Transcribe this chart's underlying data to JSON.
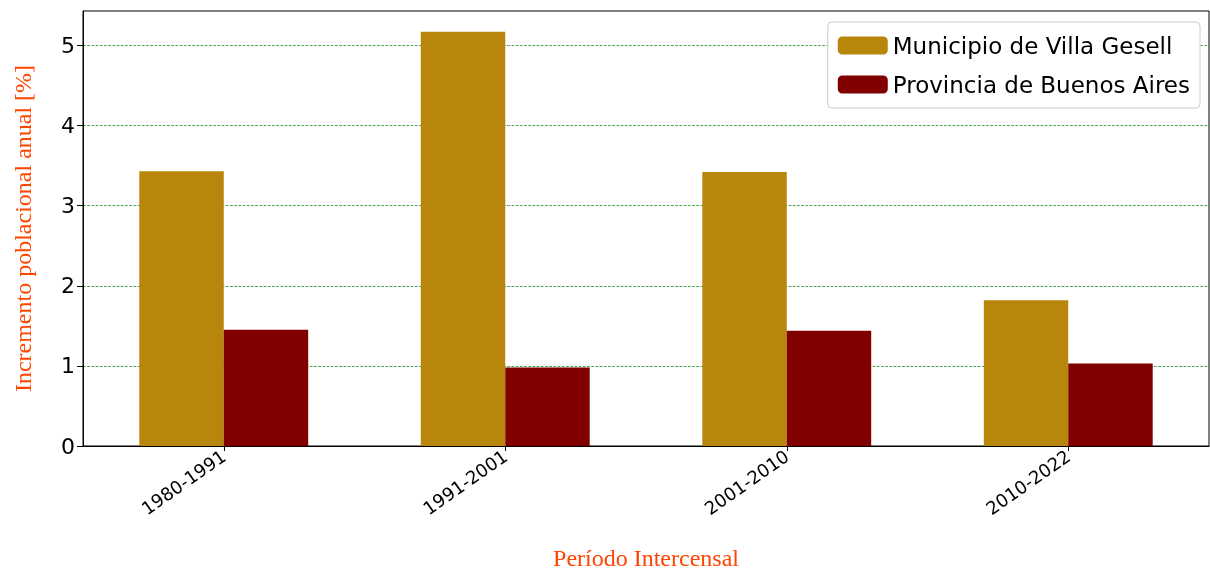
{
  "chart_data": {
    "type": "bar",
    "xlabel": "Período Intercensal",
    "ylabel": "Incremento poblacional anual [%]",
    "categories": [
      "1980-1991",
      "1991-2001",
      "2001-2010",
      "2010-2022"
    ],
    "series": [
      {
        "name": "Municipio de Villa Gesell",
        "color": "#b8860b",
        "values": [
          3.43,
          5.17,
          3.42,
          1.82
        ]
      },
      {
        "name": "Provincia de Buenos Aires",
        "color": "#800000",
        "values": [
          1.45,
          0.98,
          1.44,
          1.03
        ]
      }
    ],
    "ylim": [
      0,
      5.43
    ],
    "yticks": [
      0,
      1,
      2,
      3,
      4,
      5
    ],
    "grid": "y",
    "legend": "top right"
  }
}
